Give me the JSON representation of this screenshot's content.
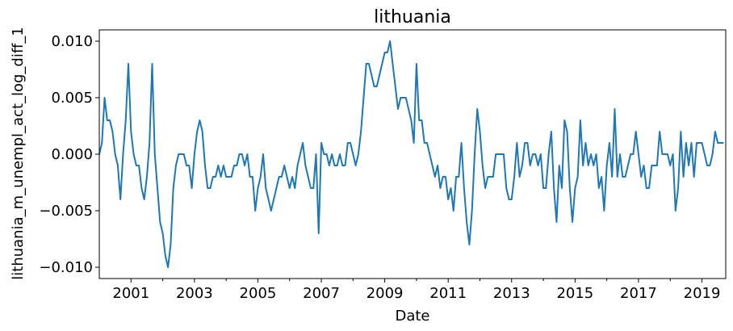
{
  "chart_data": {
    "type": "line",
    "title": "lithuania",
    "xlabel": "Date",
    "ylabel": "lithuania_m_unempl_act_log_diff_1",
    "xlim": [
      2000.0,
      2019.75
    ],
    "ylim": [
      -0.011,
      0.011
    ],
    "x_major_ticks": [
      2001,
      2003,
      2005,
      2007,
      2009,
      2011,
      2013,
      2015,
      2017,
      2019
    ],
    "x_major_tick_labels": [
      "2001",
      "2003",
      "2005",
      "2007",
      "2009",
      "2011",
      "2013",
      "2015",
      "2017",
      "2019"
    ],
    "x_minor_ticks": [
      2002,
      2004,
      2006,
      2008,
      2010,
      2012,
      2014,
      2016,
      2018
    ],
    "y_ticks": [
      -0.01,
      -0.005,
      0.0,
      0.005,
      0.01
    ],
    "y_tick_labels": [
      "−0.010",
      "−0.005",
      "0.000",
      "0.005",
      "0.010"
    ],
    "grid": false,
    "legend": "none",
    "series": [
      {
        "color": "#1f77b4",
        "x_start": "2000-01",
        "x_step_months": 1,
        "values": [
          0.0,
          0.001,
          0.005,
          0.003,
          0.003,
          0.002,
          0.0,
          -0.001,
          -0.004,
          0.0,
          0.003,
          0.008,
          0.002,
          0.0,
          -0.001,
          -0.001,
          -0.003,
          -0.004,
          -0.002,
          0.001,
          0.008,
          0.0,
          -0.003,
          -0.006,
          -0.007,
          -0.009,
          -0.01,
          -0.008,
          -0.003,
          -0.001,
          0.0,
          0.0,
          0.0,
          -0.001,
          -0.001,
          -0.003,
          0.0,
          0.002,
          0.003,
          0.002,
          -0.001,
          -0.003,
          -0.003,
          -0.002,
          -0.002,
          -0.001,
          -0.002,
          -0.001,
          -0.002,
          -0.002,
          -0.002,
          -0.001,
          -0.001,
          0.0,
          0.0,
          -0.001,
          0.0,
          -0.002,
          -0.002,
          -0.005,
          -0.003,
          -0.002,
          0.0,
          -0.003,
          -0.004,
          -0.005,
          -0.004,
          -0.003,
          -0.002,
          -0.002,
          -0.001,
          -0.002,
          -0.003,
          -0.002,
          -0.003,
          -0.001,
          0.0,
          0.001,
          -0.001,
          -0.002,
          -0.003,
          -0.003,
          0.0,
          -0.007,
          0.001,
          0.0,
          0.0,
          -0.001,
          0.0,
          -0.001,
          -0.001,
          0.0,
          -0.001,
          -0.001,
          0.001,
          0.001,
          0.0,
          -0.001,
          0.0,
          0.002,
          0.005,
          0.008,
          0.008,
          0.007,
          0.006,
          0.006,
          0.007,
          0.008,
          0.009,
          0.009,
          0.01,
          0.008,
          0.006,
          0.004,
          0.005,
          0.005,
          0.005,
          0.004,
          0.003,
          0.001,
          0.008,
          0.003,
          0.003,
          0.001,
          0.001,
          0.0,
          -0.001,
          -0.002,
          -0.001,
          -0.003,
          -0.002,
          -0.002,
          -0.004,
          -0.003,
          -0.005,
          -0.002,
          -0.002,
          0.001,
          -0.003,
          -0.006,
          -0.008,
          -0.005,
          0.0,
          0.004,
          0.002,
          -0.001,
          -0.003,
          -0.002,
          -0.002,
          -0.002,
          0.0,
          0.0,
          0.0,
          0.0,
          -0.003,
          -0.004,
          -0.004,
          -0.002,
          0.001,
          -0.002,
          -0.001,
          0.001,
          0.001,
          -0.001,
          0.0,
          0.0,
          -0.001,
          0.0,
          -0.003,
          -0.003,
          0.0,
          0.002,
          -0.003,
          -0.006,
          -0.001,
          -0.003,
          0.003,
          0.002,
          -0.003,
          -0.006,
          -0.003,
          -0.002,
          0.003,
          -0.001,
          0.001,
          -0.001,
          0.0,
          -0.001,
          0.0,
          -0.003,
          -0.002,
          -0.005,
          -0.001,
          0.001,
          -0.002,
          0.004,
          -0.002,
          0.0,
          -0.002,
          -0.002,
          -0.001,
          0.0,
          0.0,
          0.002,
          0.0,
          -0.002,
          -0.001,
          -0.003,
          -0.003,
          -0.001,
          -0.001,
          -0.001,
          0.002,
          0.0,
          0.0,
          0.0,
          -0.001,
          0.0,
          -0.005,
          -0.003,
          0.002,
          -0.002,
          0.001,
          -0.001,
          0.001,
          -0.002,
          0.001,
          0.001,
          0.001,
          0.0,
          -0.001,
          -0.001,
          0.0,
          0.002,
          0.001,
          0.001,
          0.001
        ]
      }
    ]
  }
}
